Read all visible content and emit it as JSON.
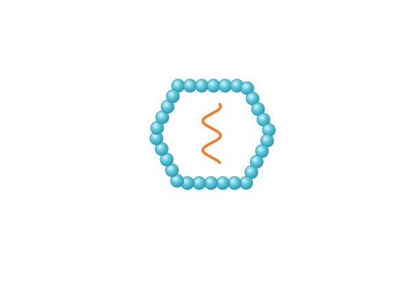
{
  "diagram": {
    "subject": "virus-particle",
    "capsid": {
      "shape": "hexagon",
      "subunit_count": 30,
      "subunit_color": "#5ec8db",
      "subunit_highlight": "#d8f4f9",
      "subunit_shadow": "#2a97ad"
    },
    "genome": {
      "shape": "helix",
      "turns": 2,
      "color": "#ee7f2d"
    }
  }
}
